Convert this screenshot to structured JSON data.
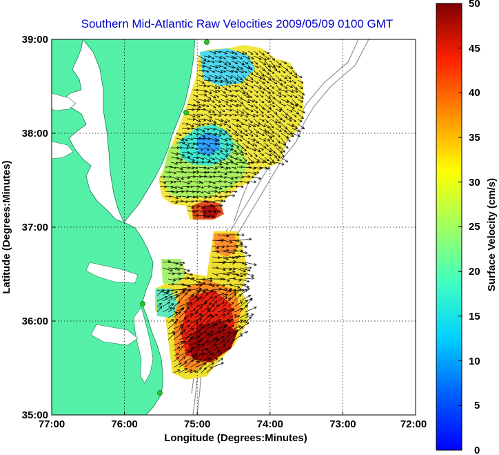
{
  "title": "Southern Mid-Atlantic Raw Velocities 2009/05/09 0100 GMT",
  "x_axis": {
    "label": "Longitude (Degrees:Minutes)",
    "ticks": [
      "77:00",
      "76:00",
      "75:00",
      "74:00",
      "73:00",
      "72:00"
    ],
    "values": [
      -77,
      -76,
      -75,
      -74,
      -73,
      -72
    ]
  },
  "y_axis": {
    "label": "Latitude (Degrees:Minutes)",
    "ticks": [
      "39:00",
      "38:00",
      "37:00",
      "36:00",
      "35:00"
    ],
    "values": [
      39,
      38,
      37,
      36,
      35
    ]
  },
  "colorbar": {
    "label": "Surface Velocity (cm/s)",
    "ticks": [
      "50",
      "45",
      "40",
      "35",
      "30",
      "25",
      "20",
      "15",
      "10",
      "5",
      "0"
    ],
    "range": [
      0,
      50
    ],
    "colormap": "jet"
  },
  "colors": {
    "land": "#55f0a8",
    "background": "#ffffff",
    "grid": "#000000",
    "coast_contour": "#909090",
    "title": "#0000cc",
    "station": "#22cc22"
  },
  "grid": "dotted"
}
